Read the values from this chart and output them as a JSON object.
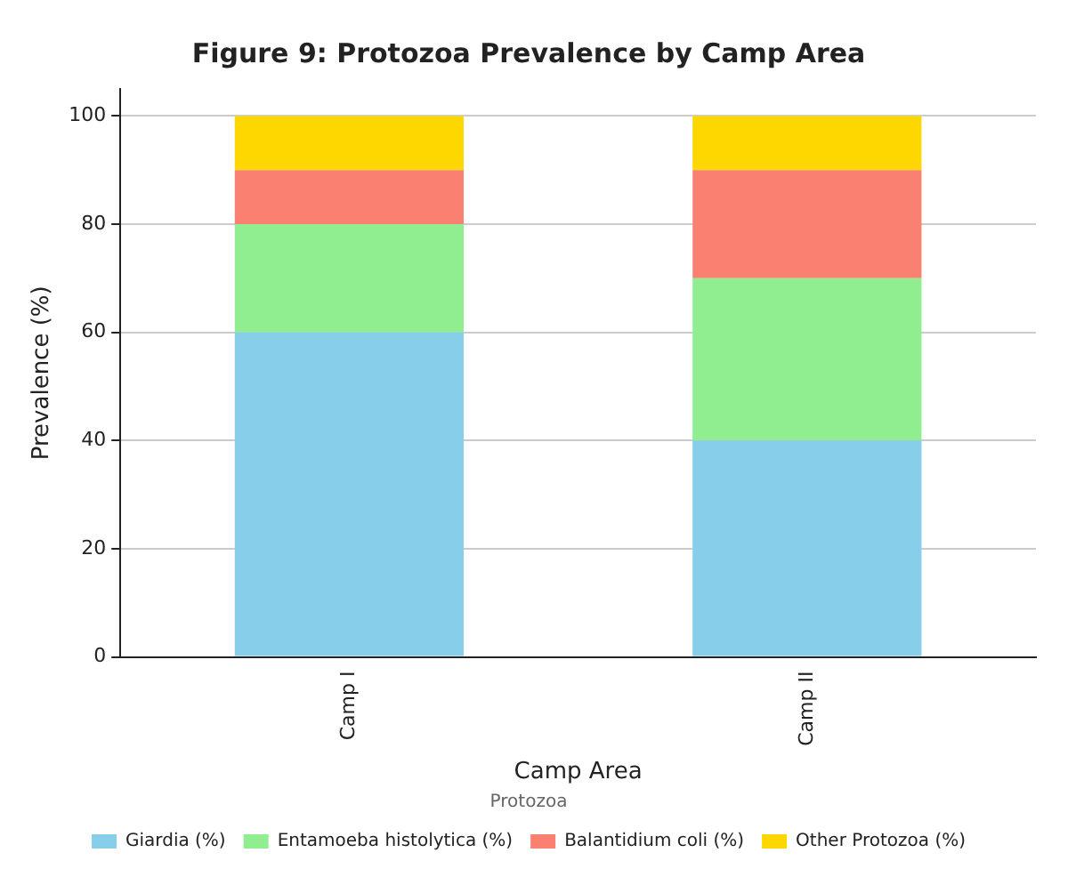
{
  "chart_data": {
    "type": "bar",
    "title": "Figure 9: Protozoa Prevalence by Camp Area",
    "xlabel": "Camp Area",
    "ylabel": "Prevalence (%)",
    "legend_title": "Protozoa",
    "categories": [
      "Camp I",
      "Camp II"
    ],
    "stacked": true,
    "series": [
      {
        "name": "Giardia (%)",
        "color": "#87ceeb",
        "values": [
          60,
          40
        ]
      },
      {
        "name": "Entamoeba histolytica (%)",
        "color": "#90ee90",
        "values": [
          20,
          30
        ]
      },
      {
        "name": "Balantidium coli (%)",
        "color": "#fa8072",
        "values": [
          10,
          20
        ]
      },
      {
        "name": "Other Protozoa (%)",
        "color": "#ffd700",
        "values": [
          10,
          10
        ]
      }
    ],
    "ylim": [
      0,
      105
    ],
    "yticks": [
      0,
      20,
      40,
      60,
      80,
      100
    ],
    "grid": "y",
    "legend": "bottom"
  }
}
